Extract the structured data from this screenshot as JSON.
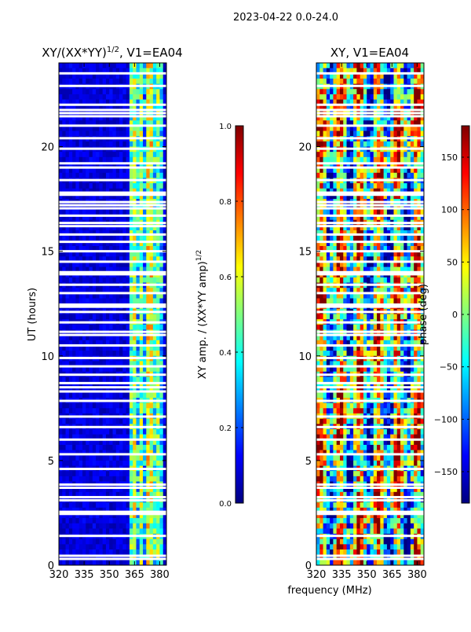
{
  "suptitle": "2023-04-22 0.0-24.0",
  "colormap_stops": [
    "#00007f",
    "#0000ff",
    "#007fff",
    "#00ffff",
    "#7fff7f",
    "#ffff00",
    "#ff7f00",
    "#ff0000",
    "#7f0000"
  ],
  "chart_data": [
    {
      "type": "heatmap",
      "title": "XY/(XX*YY)",
      "title_superscript": "1/2",
      "title_suffix": ", V1=EA04",
      "xlabel": "",
      "ylabel": "UT (hours)",
      "xlim": [
        320,
        384
      ],
      "ylim": [
        0,
        24
      ],
      "xticks": [
        320,
        335,
        350,
        365,
        380
      ],
      "yticks": [
        0,
        5,
        10,
        15,
        20
      ],
      "value_range": [
        0,
        1
      ],
      "bright_band_mhz": [
        362,
        382
      ],
      "colorbar": {
        "label": "XY amp. / (XX*YY amp)",
        "label_superscript": "1/2",
        "range": [
          0.0,
          1.0
        ],
        "ticks": [
          "0.0",
          "0.2",
          "0.4",
          "0.6",
          "0.8",
          "1.0"
        ]
      }
    },
    {
      "type": "heatmap",
      "title": "XY, V1=EA04",
      "xlabel": "frequency (MHz)",
      "ylabel": "",
      "xlim": [
        320,
        384
      ],
      "ylim": [
        0,
        24
      ],
      "xticks": [
        320,
        335,
        350,
        365,
        380
      ],
      "yticks": [
        0,
        5,
        10,
        15,
        20
      ],
      "value_range": [
        -180,
        180
      ],
      "colorbar": {
        "label": "phase (deg)",
        "range": [
          -180,
          180
        ],
        "ticks": [
          "−150",
          "−100",
          "−50",
          "0",
          "50",
          "100",
          "150"
        ]
      }
    }
  ],
  "gap_rows_ut": [
    0.3,
    0.45,
    1.4,
    2.45,
    2.55,
    3.1,
    3.25,
    3.7,
    3.85,
    4.6,
    5.3,
    6.0,
    6.6,
    7.1,
    7.85,
    8.3,
    8.5,
    8.7,
    9.1,
    9.5,
    9.9,
    10.5,
    11.0,
    11.15,
    11.6,
    12.1,
    12.35,
    12.45,
    13.0,
    13.4,
    13.9,
    14.0,
    14.5,
    15.0,
    15.45,
    15.8,
    16.2,
    16.35,
    16.7,
    17.05,
    17.2,
    17.35,
    17.7,
    17.8,
    18.4,
    19.0,
    19.2,
    19.9,
    20.4,
    21.0,
    21.45,
    21.6,
    21.75,
    22.0,
    22.9,
    23.5
  ]
}
